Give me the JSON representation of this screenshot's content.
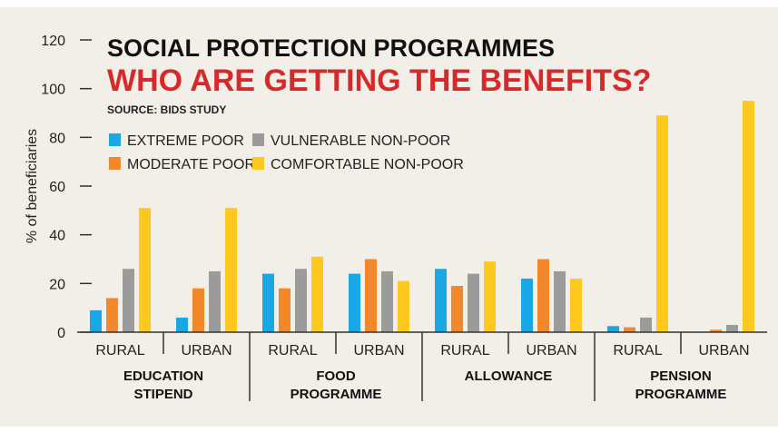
{
  "chart_data": {
    "type": "bar",
    "title": "SOCIAL PROTECTION PROGRAMMES",
    "subtitle": "WHO ARE GETTING THE BENEFITS?",
    "source": "SOURCE: BIDS STUDY",
    "ylabel": "% of beneficiaries",
    "xlabel": "",
    "ylim": [
      0,
      120
    ],
    "yticks": [
      0,
      20,
      40,
      60,
      80,
      100,
      120
    ],
    "grid": false,
    "legend_position": "top-left",
    "colors": {
      "background": "#f2efe9",
      "title": "#111111",
      "subtitle": "#d62a2a",
      "extreme": "#1aa7e6",
      "moderate": "#f2872b",
      "vulnerable": "#9b9b9b",
      "comfortable": "#ffc81e"
    },
    "groups": [
      {
        "lines": [
          "EDUCATION",
          "STIPEND"
        ],
        "categories": [
          "RURAL",
          "URBAN"
        ]
      },
      {
        "lines": [
          "FOOD",
          "PROGRAMME"
        ],
        "categories": [
          "RURAL",
          "URBAN"
        ]
      },
      {
        "lines": [
          "ALLOWANCE"
        ],
        "categories": [
          "RURAL",
          "URBAN"
        ]
      },
      {
        "lines": [
          "PENSION",
          "PROGRAMME"
        ],
        "categories": [
          "RURAL",
          "URBAN"
        ]
      }
    ],
    "categories": [
      "RURAL",
      "URBAN",
      "RURAL",
      "URBAN",
      "RURAL",
      "URBAN",
      "RURAL",
      "URBAN"
    ],
    "series": [
      {
        "name": "EXTREME POOR",
        "color_key": "extreme",
        "values": [
          9,
          6,
          24,
          24,
          26,
          22,
          2.5,
          0
        ]
      },
      {
        "name": "MODERATE POOR",
        "color_key": "moderate",
        "values": [
          14,
          18,
          18,
          30,
          19,
          30,
          2,
          1
        ]
      },
      {
        "name": "VULNERABLE NON-POOR",
        "color_key": "vulnerable",
        "values": [
          26,
          25,
          26,
          25,
          24,
          25,
          6,
          3
        ]
      },
      {
        "name": "COMFORTABLE NON-POOR",
        "color_key": "comfortable",
        "values": [
          51,
          51,
          31,
          21,
          29,
          22,
          89,
          95
        ]
      }
    ]
  }
}
